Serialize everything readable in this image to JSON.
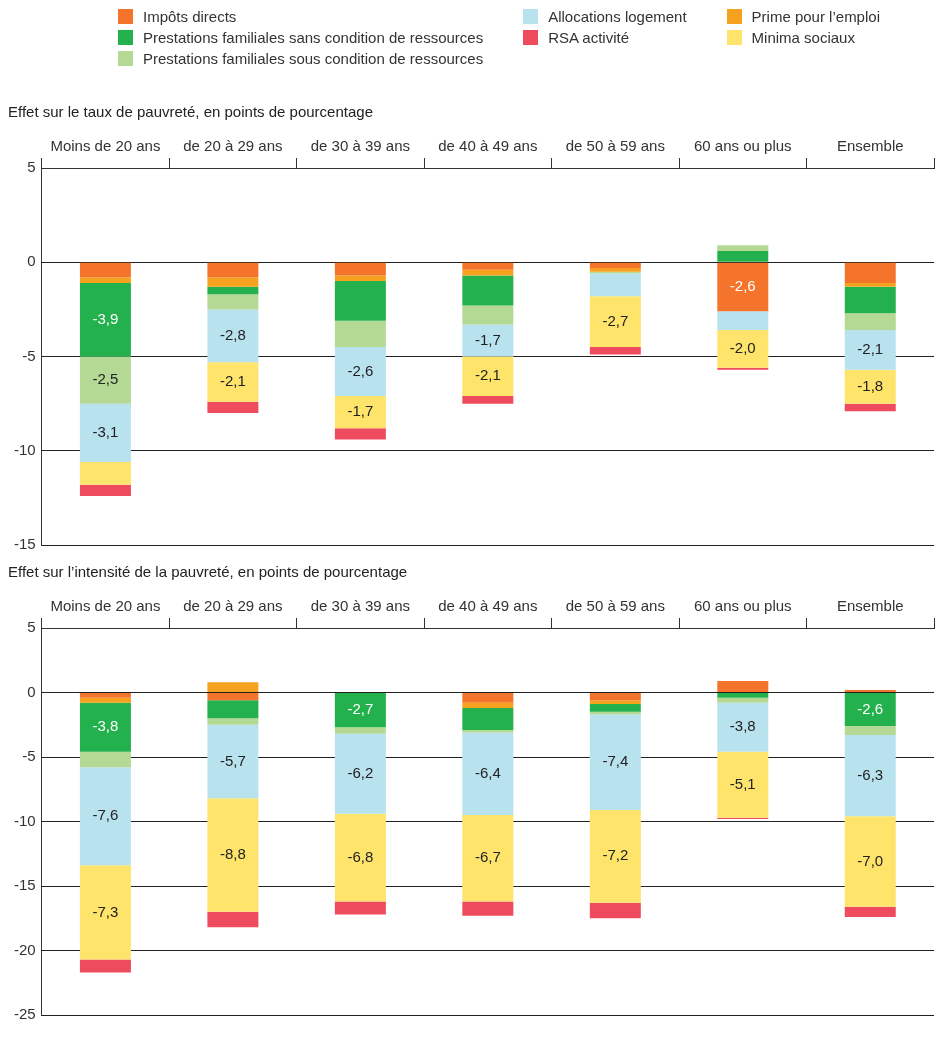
{
  "chart_data": [
    {
      "type": "bar",
      "title": "Effet sur le taux de pauvreté, en points de pourcentage",
      "categories": [
        "Moins de 20 ans",
        "de 20 à 29 ans",
        "de 30 à 39 ans",
        "de 40 à 49 ans",
        "de 50 à 59 ans",
        "60 ans ou plus",
        "Ensemble"
      ],
      "stacked": true,
      "ylim": [
        -15,
        5
      ],
      "yticks": [
        -15,
        -10,
        -5,
        0,
        5
      ],
      "grid": "y",
      "legend": "top",
      "series": [
        {
          "name": "Impôts directs",
          "color": "#f4742b",
          "values": [
            -0.8,
            -0.8,
            -0.7,
            -0.4,
            -0.3,
            -2.6,
            -1.1
          ],
          "value_labels": [
            null,
            null,
            null,
            null,
            null,
            "-2,6",
            null
          ]
        },
        {
          "name": "Prime pour l’emploi",
          "color": "#f6a21f",
          "values": [
            -0.3,
            -0.5,
            -0.3,
            -0.3,
            -0.2,
            null,
            -0.2
          ]
        },
        {
          "name": "Prestations familiales sans condition de ressources",
          "color": "#22b14c",
          "values": [
            -3.9,
            -0.4,
            -2.1,
            -1.6,
            null,
            0.6,
            -1.4
          ],
          "value_labels": [
            "-3,9",
            null,
            null,
            null,
            null,
            null,
            null
          ]
        },
        {
          "name": "Prestations familiales sous condition de ressources",
          "color": "#b3d995",
          "values": [
            -2.5,
            -0.8,
            -1.4,
            -1.0,
            -0.1,
            0.3,
            -0.9
          ],
          "value_labels": [
            "-2,5",
            null,
            null,
            null,
            null,
            null,
            null
          ]
        },
        {
          "name": "Allocations logement",
          "color": "#b8e2ee",
          "values": [
            -3.1,
            -2.8,
            -2.6,
            -1.7,
            -1.2,
            -1.0,
            -2.1
          ],
          "value_labels": [
            "-3,1",
            "-2,8",
            "-2,6",
            "-1,7",
            null,
            null,
            "-2,1"
          ]
        },
        {
          "name": "Minima sociaux",
          "color": "#fee46b",
          "values": [
            -1.2,
            -2.1,
            -1.7,
            -2.1,
            -2.7,
            -2.0,
            -1.8
          ],
          "value_labels": [
            null,
            "-2,1",
            "-1,7",
            "-2,1",
            "-2,7",
            "-2,0",
            "-1,8"
          ]
        },
        {
          "name": "RSA activité",
          "color": "#ee4b5e",
          "values": [
            -0.6,
            -0.6,
            -0.6,
            -0.4,
            -0.4,
            -0.1,
            -0.4
          ]
        }
      ]
    },
    {
      "type": "bar",
      "title": "Effet sur l’intensité de la pauvreté, en points de pourcentage",
      "categories": [
        "Moins de 20 ans",
        "de 20 à 29 ans",
        "de 30 à 39 ans",
        "de 40 à 49 ans",
        "de 50 à 59 ans",
        "60 ans ou plus",
        "Ensemble"
      ],
      "stacked": true,
      "ylim": [
        -25,
        5
      ],
      "yticks": [
        -25,
        -20,
        -15,
        -10,
        -5,
        0,
        5
      ],
      "grid": "y",
      "series": [
        {
          "color": "#f4742b",
          "values": [
            -0.4,
            -0.6,
            null,
            -0.8,
            -0.6,
            0.9,
            0.2
          ]
        },
        {
          "color": "#f6a21f",
          "values": [
            -0.4,
            0.8,
            null,
            -0.4,
            -0.3,
            null,
            null
          ]
        },
        {
          "color": "#22b14c",
          "values": [
            -3.8,
            -1.4,
            -2.7,
            -1.7,
            -0.6,
            -0.4,
            -2.6
          ],
          "value_labels": [
            "-3,8",
            null,
            "-2,7",
            null,
            null,
            null,
            "-2,6"
          ]
        },
        {
          "color": "#b3d995",
          "values": [
            -1.2,
            -0.5,
            -0.5,
            -0.2,
            -0.2,
            -0.4,
            -0.7
          ]
        },
        {
          "color": "#b8e2ee",
          "values": [
            -7.6,
            -5.7,
            -6.2,
            -6.4,
            -7.4,
            -3.8,
            -6.3
          ],
          "value_labels": [
            "-7,6",
            "-5,7",
            "-6,2",
            "-6,4",
            "-7,4",
            "-3,8",
            "-6,3"
          ]
        },
        {
          "color": "#fee46b",
          "values": [
            -7.3,
            -8.8,
            -6.8,
            -6.7,
            -7.2,
            -5.1,
            -7.0
          ],
          "value_labels": [
            "-7,3",
            "-8,8",
            "-6,8",
            "-6,7",
            "-7,2",
            "-5,1",
            "-7,0"
          ]
        },
        {
          "color": "#ee4b5e",
          "values": [
            -1.0,
            -1.2,
            -1.0,
            -1.1,
            -1.2,
            -0.1,
            -0.8
          ]
        }
      ]
    }
  ]
}
